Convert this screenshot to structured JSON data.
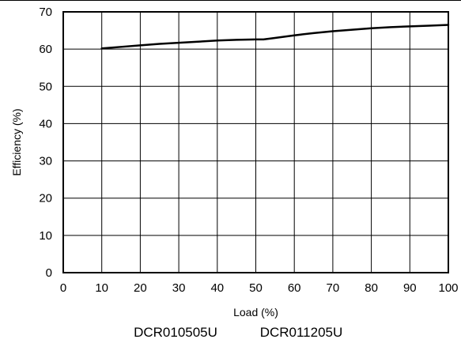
{
  "chart_data": {
    "type": "line",
    "xlabel": "Load (%)",
    "ylabel": "Efficiency (%)",
    "xlim": [
      0,
      100
    ],
    "ylim": [
      0,
      70
    ],
    "x_ticks": [
      "0",
      "10",
      "20",
      "30",
      "40",
      "50",
      "60",
      "70",
      "80",
      "90",
      "100"
    ],
    "y_ticks": [
      "0",
      "10",
      "20",
      "30",
      "40",
      "50",
      "60",
      "70"
    ],
    "grid": true,
    "series": [
      {
        "x": [
          10,
          15,
          20,
          25,
          30,
          35,
          40,
          45,
          50,
          52,
          55,
          60,
          65,
          70,
          75,
          80,
          85,
          90,
          95,
          100
        ],
        "y": [
          60.2,
          60.6,
          61.0,
          61.4,
          61.7,
          62.0,
          62.3,
          62.5,
          62.6,
          62.6,
          63.0,
          63.7,
          64.3,
          64.8,
          65.2,
          65.6,
          65.9,
          66.1,
          66.3,
          66.5
        ],
        "color": "#000000"
      }
    ]
  },
  "caption": {
    "model_a": "DCR010505U",
    "model_b": "DCR011205U"
  }
}
